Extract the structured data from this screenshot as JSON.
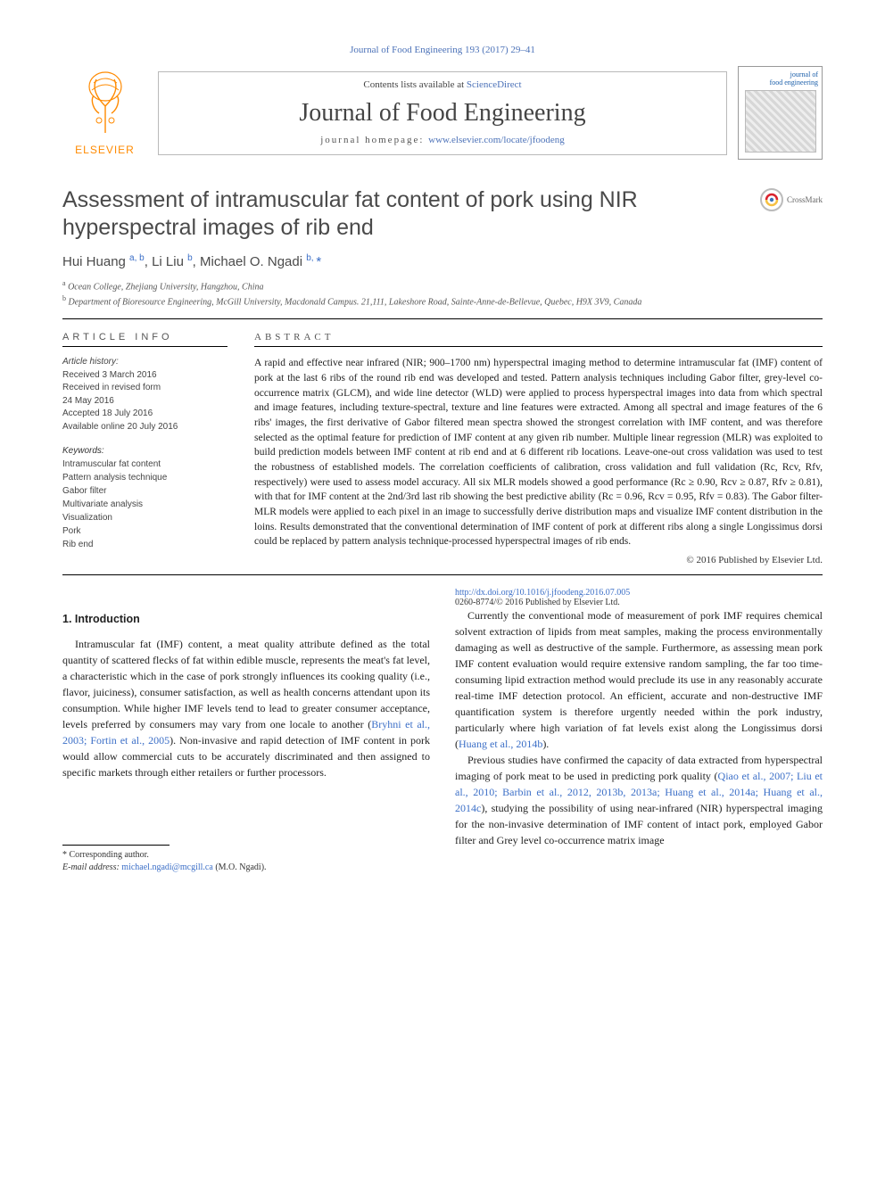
{
  "top_citation": "Journal of Food Engineering 193 (2017) 29–41",
  "masthead": {
    "contents_prefix": "Contents lists available at ",
    "contents_link_text": "ScienceDirect",
    "journal_title": "Journal of Food Engineering",
    "homepage_prefix": "journal homepage: ",
    "homepage_link_text": "www.elsevier.com/locate/jfoodeng",
    "elsevier_word": "ELSEVIER",
    "cover_top_line1": "journal of",
    "cover_top_line2": "food engineering"
  },
  "crossmark_label": "CrossMark",
  "article": {
    "title": "Assessment of intramuscular fat content of pork using NIR hyperspectral images of rib end",
    "authors_html": "Hui Huang <sup>a, b</sup>, Li Liu <sup>b</sup>, Michael O. Ngadi <sup>b, </sup><span class='star'>*</span>",
    "affiliations": [
      "a Ocean College, Zhejiang University, Hangzhou, China",
      "b Department of Bioresource Engineering, McGill University, Macdonald Campus. 21,111, Lakeshore Road, Sainte-Anne-de-Bellevue, Quebec, H9X 3V9, Canada"
    ]
  },
  "article_info": {
    "header": "ARTICLE INFO",
    "history_label": "Article history:",
    "history": [
      "Received 3 March 2016",
      "Received in revised form",
      "24 May 2016",
      "Accepted 18 July 2016",
      "Available online 20 July 2016"
    ],
    "keywords_label": "Keywords:",
    "keywords": [
      "Intramuscular fat content",
      "Pattern analysis technique",
      "Gabor filter",
      "Multivariate analysis",
      "Visualization",
      "Pork",
      "Rib end"
    ]
  },
  "abstract": {
    "header": "ABSTRACT",
    "text": "A rapid and effective near infrared (NIR; 900–1700 nm) hyperspectral imaging method to determine intramuscular fat (IMF) content of pork at the last 6 ribs of the round rib end was developed and tested. Pattern analysis techniques including Gabor filter, grey-level co-occurrence matrix (GLCM), and wide line detector (WLD) were applied to process hyperspectral images into data from which spectral and image features, including texture-spectral, texture and line features were extracted. Among all spectral and image features of the 6 ribs' images, the first derivative of Gabor filtered mean spectra showed the strongest correlation with IMF content, and was therefore selected as the optimal feature for prediction of IMF content at any given rib number. Multiple linear regression (MLR) was exploited to build prediction models between IMF content at rib end and at 6 different rib locations. Leave-one-out cross validation was used to test the robustness of established models. The correlation coefficients of calibration, cross validation and full validation (Rc, Rcv, Rfv, respectively) were used to assess model accuracy. All six MLR models showed a good performance (Rc ≥ 0.90, Rcv ≥ 0.87, Rfv ≥ 0.81), with that for IMF content at the 2nd/3rd last rib showing the best predictive ability (Rc = 0.96, Rcv = 0.95, Rfv = 0.83). The Gabor filter-MLR models were applied to each pixel in an image to successfully derive distribution maps and visualize IMF content distribution in the loins. Results demonstrated that the conventional determination of IMF content of pork at different ribs along a single Longissimus dorsi could be replaced by pattern analysis technique-processed hyperspectral images of rib ends.",
    "copyright": "© 2016 Published by Elsevier Ltd."
  },
  "intro": {
    "header": "1. Introduction",
    "p1_pre": "Intramuscular fat (IMF) content, a meat quality attribute defined as the total quantity of scattered flecks of fat within edible muscle, represents the meat's fat level, a characteristic which in the case of pork strongly influences its cooking quality (i.e., flavor, juiciness), consumer satisfaction, as well as health concerns attendant upon its consumption. While higher IMF levels tend to lead to greater consumer acceptance, levels preferred by consumers may vary from one locale to another (",
    "p1_cite": "Bryhni et al., 2003; Fortin et al., 2005",
    "p1_post": "). Non-invasive and rapid detection of IMF content in pork would allow commercial cuts to be accurately discriminated and then assigned to specific markets through either retailers or further processors.",
    "p2_pre": "Currently the conventional mode of measurement of pork IMF requires chemical solvent extraction of lipids from meat samples, making the process environmentally damaging as well as destructive of the sample. Furthermore, as assessing mean pork IMF content evaluation would require extensive random sampling, the far too time-consuming lipid extraction method would preclude its use in any reasonably accurate real-time IMF detection protocol. An efficient, accurate and non-destructive IMF quantification system is therefore urgently needed within the pork industry, particularly where high variation of fat levels exist along the Longissimus dorsi (",
    "p2_cite": "Huang et al., 2014b",
    "p2_post": ").",
    "p3_pre": "Previous studies have confirmed the capacity of data extracted from hyperspectral imaging of pork meat to be used in predicting pork quality (",
    "p3_cite": "Qiao et al., 2007; Liu et al., 2010; Barbin et al., 2012, 2013b, 2013a; Huang et al., 2014a; Huang et al., 2014c",
    "p3_post": "), studying the possibility of using near-infrared (NIR) hyperspectral imaging for the non-invasive determination of IMF content of intact pork, employed Gabor filter and Grey level co-occurrence matrix image"
  },
  "footer": {
    "corr_label": "* Corresponding author.",
    "email_label": "E-mail address: ",
    "email": "michael.ngadi@mcgill.ca",
    "email_suffix": " (M.O. Ngadi).",
    "doi": "http://dx.doi.org/10.1016/j.jfoodeng.2016.07.005",
    "issn_line": "0260-8774/© 2016 Published by Elsevier Ltd."
  },
  "colors": {
    "link": "#3c6fc7",
    "elsevier_orange": "#ff8a00",
    "heading_grey": "#4a4a4a"
  }
}
